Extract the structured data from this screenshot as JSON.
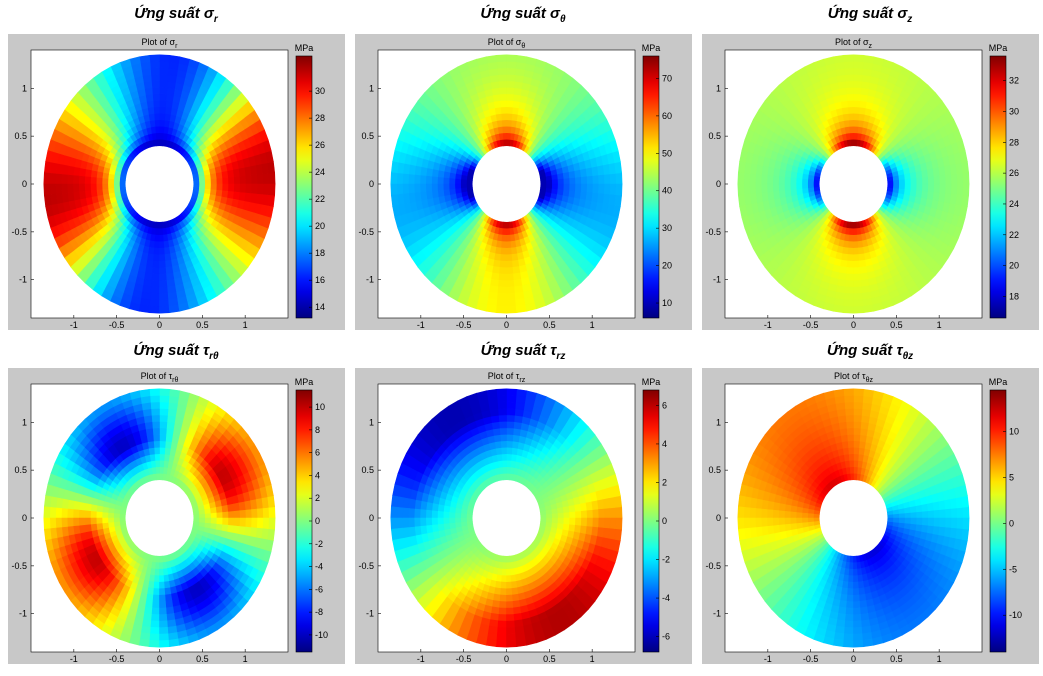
{
  "panels": [
    {
      "caption": "Ứng suất σ",
      "caption_sub": "r",
      "plot_title": "Plot of σ",
      "plot_title_sub": "r",
      "unit": "MPa",
      "colorbar_ticks": [
        14,
        16,
        18,
        20,
        22,
        24,
        26,
        28,
        30
      ],
      "colorbar_range": [
        13.2,
        32.6
      ],
      "y_ticks": [
        "1",
        "0.5",
        "0",
        "-0.5",
        "-1"
      ],
      "x_ticks": [
        "-1",
        "-0.5",
        "0",
        "0.5",
        "1"
      ],
      "field": "sigma_r"
    },
    {
      "caption": "Ứng suất σ",
      "caption_sub": "θ",
      "plot_title": "Plot of σ",
      "plot_title_sub": "θ",
      "unit": "MPa",
      "colorbar_ticks": [
        10,
        20,
        30,
        40,
        50,
        60,
        70
      ],
      "colorbar_range": [
        6,
        76
      ],
      "y_ticks": [
        "1",
        "0.5",
        "0",
        "-0.5",
        "-1"
      ],
      "x_ticks": [
        "-1",
        "-0.5",
        "0",
        "0.5",
        "1"
      ],
      "field": "sigma_theta"
    },
    {
      "caption": "Ứng suất σ",
      "caption_sub": "z",
      "plot_title": "Plot of σ",
      "plot_title_sub": "z",
      "unit": "MPa",
      "colorbar_ticks": [
        18,
        20,
        22,
        24,
        26,
        28,
        30,
        32
      ],
      "colorbar_range": [
        16.6,
        33.6
      ],
      "y_ticks": [
        "1",
        "0.5",
        "0",
        "-0.5",
        "-1"
      ],
      "x_ticks": [
        "-1",
        "-0.5",
        "0",
        "0.5",
        "1"
      ],
      "field": "sigma_z"
    },
    {
      "caption": "Ứng suất τ",
      "caption_sub": "rθ",
      "plot_title": "Plot of τ",
      "plot_title_sub": "rθ",
      "unit": "MPa",
      "colorbar_ticks": [
        10,
        8,
        6,
        4,
        2,
        0,
        -2,
        -4,
        -6,
        -8,
        -10
      ],
      "colorbar_range": [
        -11.5,
        11.5
      ],
      "y_ticks": [
        "1",
        "0.5",
        "0",
        "-0.5",
        "-1"
      ],
      "x_ticks": [
        "-1",
        "-0.5",
        "0",
        "0.5",
        "1"
      ],
      "field": "tau_rtheta"
    },
    {
      "caption": "Ứng suất τ",
      "caption_sub": "rz",
      "plot_title": "Plot of τ",
      "plot_title_sub": "rz",
      "unit": "MPa",
      "colorbar_ticks": [
        6,
        4,
        2,
        0,
        -2,
        -4,
        -6
      ],
      "colorbar_range": [
        -6.8,
        6.8
      ],
      "y_ticks": [
        "1",
        "0.5",
        "0",
        "-0.5",
        "-1"
      ],
      "x_ticks": [
        "-1",
        "-0.5",
        "0",
        "0.5",
        "1"
      ],
      "field": "tau_rz"
    },
    {
      "caption": "Ứng suất τ",
      "caption_sub": "θz",
      "plot_title": "Plot of τ",
      "plot_title_sub": "θz",
      "unit": "MPa",
      "colorbar_ticks": [
        10,
        5,
        0,
        -5,
        -10
      ],
      "colorbar_range": [
        -14,
        14.5
      ],
      "y_ticks": [
        "1",
        "0.5",
        "0",
        "-0.5",
        "-1"
      ],
      "x_ticks": [
        "-1",
        "-0.5",
        "0",
        "0.5",
        "1"
      ],
      "field": "tau_thetaz"
    }
  ],
  "chart_data": [
    {
      "type": "heatmap",
      "title": "Plot of σr",
      "unit": "MPa",
      "xlim": [
        -1.5,
        1.5
      ],
      "ylim": [
        -1.4,
        1.4
      ],
      "outer_radius": 1.35,
      "inner_radius": 0.4,
      "range": [
        13.2,
        32.6
      ],
      "colorbar_ticks": [
        14,
        16,
        18,
        20,
        22,
        24,
        26,
        28,
        30
      ]
    },
    {
      "type": "heatmap",
      "title": "Plot of σθ",
      "unit": "MPa",
      "xlim": [
        -1.5,
        1.5
      ],
      "ylim": [
        -1.4,
        1.4
      ],
      "outer_radius": 1.35,
      "inner_radius": 0.4,
      "range": [
        6,
        76
      ],
      "colorbar_ticks": [
        10,
        20,
        30,
        40,
        50,
        60,
        70
      ]
    },
    {
      "type": "heatmap",
      "title": "Plot of σz",
      "unit": "MPa",
      "xlim": [
        -1.5,
        1.5
      ],
      "ylim": [
        -1.4,
        1.4
      ],
      "outer_radius": 1.35,
      "inner_radius": 0.4,
      "range": [
        16.6,
        33.6
      ],
      "colorbar_ticks": [
        18,
        20,
        22,
        24,
        26,
        28,
        30,
        32
      ]
    },
    {
      "type": "heatmap",
      "title": "Plot of τrθ",
      "unit": "MPa",
      "xlim": [
        -1.5,
        1.5
      ],
      "ylim": [
        -1.4,
        1.4
      ],
      "outer_radius": 1.35,
      "inner_radius": 0.4,
      "range": [
        -11.5,
        11.5
      ],
      "colorbar_ticks": [
        10,
        8,
        6,
        4,
        2,
        0,
        -2,
        -4,
        -6,
        -8,
        -10
      ]
    },
    {
      "type": "heatmap",
      "title": "Plot of τrz",
      "unit": "MPa",
      "xlim": [
        -1.5,
        1.5
      ],
      "ylim": [
        -1.4,
        1.4
      ],
      "outer_radius": 1.35,
      "inner_radius": 0.4,
      "range": [
        -6.8,
        6.8
      ],
      "colorbar_ticks": [
        6,
        4,
        2,
        0,
        -2,
        -4,
        -6
      ]
    },
    {
      "type": "heatmap",
      "title": "Plot of τθz",
      "unit": "MPa",
      "xlim": [
        -1.5,
        1.5
      ],
      "ylim": [
        -1.4,
        1.4
      ],
      "outer_radius": 1.35,
      "inner_radius": 0.4,
      "range": [
        -14,
        14.5
      ],
      "colorbar_ticks": [
        10,
        5,
        0,
        -5,
        -10
      ]
    }
  ],
  "colors": {
    "frame_bg": "#c8c8c8",
    "axes_bg": "#ffffff",
    "text": "#000000"
  }
}
